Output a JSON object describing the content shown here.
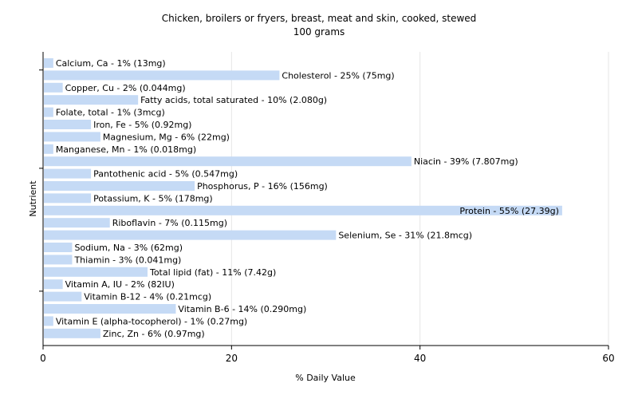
{
  "chart_data": {
    "type": "bar",
    "orientation": "horizontal",
    "title": "Chicken, broilers or fryers, breast, meat and skin, cooked, stewed",
    "subtitle": "100 grams",
    "xlabel": "% Daily Value",
    "ylabel": "Nutrient",
    "xlim": [
      0,
      60
    ],
    "xticks": [
      0,
      20,
      40,
      60
    ],
    "grid": true,
    "bar_color": "#c5daf5",
    "categories": [
      "Calcium, Ca",
      "Cholesterol",
      "Copper, Cu",
      "Fatty acids, total saturated",
      "Folate, total",
      "Iron, Fe",
      "Magnesium, Mg",
      "Manganese, Mn",
      "Niacin",
      "Pantothenic acid",
      "Phosphorus, P",
      "Potassium, K",
      "Protein",
      "Riboflavin",
      "Selenium, Se",
      "Sodium, Na",
      "Thiamin",
      "Total lipid (fat)",
      "Vitamin A, IU",
      "Vitamin B-12",
      "Vitamin B-6",
      "Vitamin E (alpha-tocopherol)",
      "Zinc, Zn"
    ],
    "values": [
      1,
      25,
      2,
      10,
      1,
      5,
      6,
      1,
      39,
      5,
      16,
      5,
      55,
      7,
      31,
      3,
      3,
      11,
      2,
      4,
      14,
      1,
      6
    ],
    "labels": [
      "Calcium, Ca - 1% (13mg)",
      "Cholesterol - 25% (75mg)",
      "Copper, Cu - 2% (0.044mg)",
      "Fatty acids, total saturated - 10% (2.080g)",
      "Folate, total - 1% (3mcg)",
      "Iron, Fe - 5% (0.92mg)",
      "Magnesium, Mg - 6% (22mg)",
      "Manganese, Mn - 1% (0.018mg)",
      "Niacin - 39% (7.807mg)",
      "Pantothenic acid - 5% (0.547mg)",
      "Phosphorus, P - 16% (156mg)",
      "Potassium, K - 5% (178mg)",
      "Protein - 55% (27.39g)",
      "Riboflavin - 7% (0.115mg)",
      "Selenium, Se - 31% (21.8mcg)",
      "Sodium, Na - 3% (62mg)",
      "Thiamin - 3% (0.041mg)",
      "Total lipid (fat) - 11% (7.42g)",
      "Vitamin A, IU - 2% (82IU)",
      "Vitamin B-12 - 4% (0.21mcg)",
      "Vitamin B-6 - 14% (0.290mg)",
      "Vitamin E (alpha-tocopherol) - 1% (0.27mg)",
      "Zinc, Zn - 6% (0.97mg)"
    ]
  }
}
